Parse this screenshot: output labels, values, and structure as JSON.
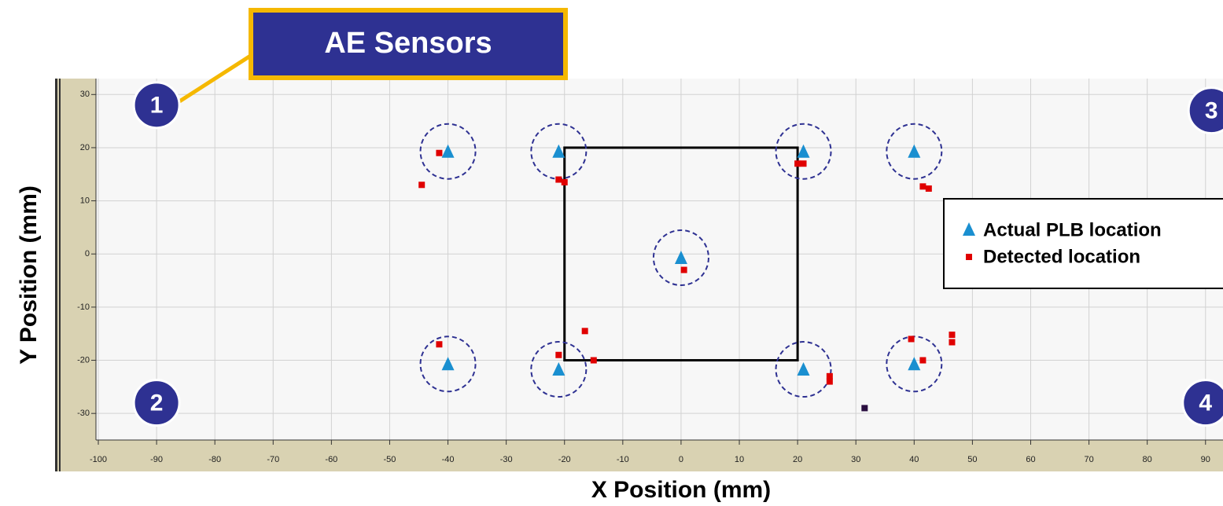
{
  "chart_data": {
    "type": "scatter",
    "x_label": "X Position (mm)",
    "y_label": "Y Position (mm)",
    "xlim": [
      -100,
      93
    ],
    "ylim": [
      -35,
      33
    ],
    "xticks": [
      -100,
      -90,
      -80,
      -70,
      -60,
      -50,
      -40,
      -30,
      -20,
      -10,
      0,
      10,
      20,
      30,
      40,
      50,
      60,
      70,
      80,
      90
    ],
    "yticks": [
      -30,
      -20,
      -10,
      0,
      10,
      20,
      30
    ],
    "grid": true,
    "legend": "right",
    "series": [
      {
        "name": "Actual PLB location",
        "color": "#1a8fd0",
        "marker": "triangle",
        "x": [
          -40,
          -21,
          21,
          40,
          0,
          -40,
          -21,
          21,
          40
        ],
        "values": [
          19,
          19,
          19,
          19,
          -1,
          -21,
          -22,
          -22,
          -21
        ]
      },
      {
        "name": "Detected location",
        "color": "#e00000",
        "marker": "square",
        "x": [
          -41.5,
          -44.5,
          -21,
          -20,
          20,
          21,
          41.5,
          42.5,
          0.5,
          -41.5,
          -21,
          -16.5,
          -15,
          25.5,
          25.5,
          39.5,
          41.5,
          46.5,
          46.5
        ],
        "values": [
          19,
          13,
          14,
          13.5,
          17,
          17,
          12.7,
          12.3,
          -3,
          -17,
          -19,
          -14.5,
          -20,
          -23,
          -24,
          -16,
          -20,
          -15.2,
          -16.6
        ]
      },
      {
        "color": "#2a0f40",
        "marker": "square",
        "x": [
          31.5
        ],
        "values": [
          -29
        ]
      }
    ],
    "rectangle": {
      "x": [
        -20,
        20
      ],
      "y": [
        -20,
        20
      ]
    },
    "sensors": {
      "labels": [
        "1",
        "2",
        "3",
        "4"
      ],
      "x": [
        -90,
        -90,
        91,
        90
      ],
      "y": [
        28,
        -28,
        27,
        -28
      ]
    },
    "callout": "AE Sensors"
  }
}
